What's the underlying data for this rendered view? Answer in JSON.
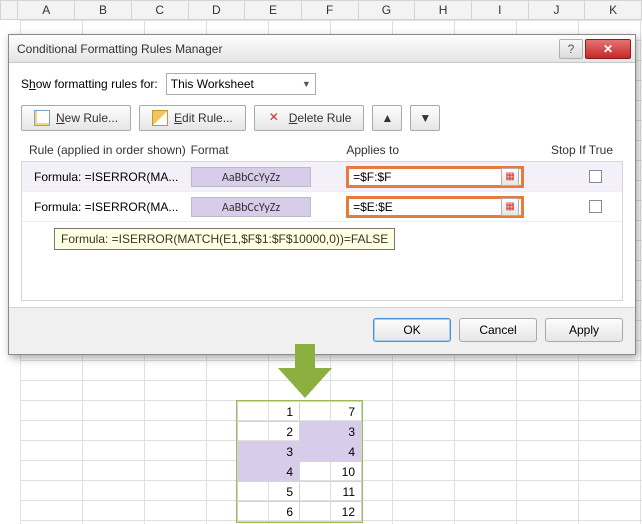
{
  "spreadsheet": {
    "columns": [
      "A",
      "B",
      "C",
      "D",
      "E",
      "F",
      "G",
      "H",
      "I",
      "J",
      "K"
    ]
  },
  "dialog": {
    "title": "Conditional Formatting Rules Manager",
    "show_label_pre": "S",
    "show_label_u": "h",
    "show_label_post": "ow formatting rules for:",
    "show_combo": "This Worksheet",
    "buttons": {
      "new_u": "N",
      "new_rest": "ew Rule...",
      "edit_u": "E",
      "edit_rest": "dit Rule...",
      "del_u": "D",
      "del_rest": "elete Rule",
      "up": "▲",
      "down": "▼"
    },
    "headers": {
      "rule": "Rule (applied in order shown)",
      "format": "Format",
      "applies": "Applies to",
      "stop": "Stop If True"
    },
    "rules": [
      {
        "text": "Formula: =ISERROR(MA...",
        "preview": "AaBbCcYyZz",
        "applies": "=$F:$F"
      },
      {
        "text": "Formula: =ISERROR(MA...",
        "preview": "AaBbCcYyZz",
        "applies": "=$E:$E"
      }
    ],
    "tooltip": "Formula: =ISERROR(MATCH(E1,$F$1:$F$10000,0))=FALSE",
    "ok": "OK",
    "cancel": "Cancel",
    "apply": "Apply"
  },
  "result": {
    "rows": [
      {
        "e": "1",
        "f": "7",
        "ehl": false,
        "fhl": false
      },
      {
        "e": "2",
        "f": "3",
        "ehl": false,
        "fhl": true
      },
      {
        "e": "3",
        "f": "4",
        "ehl": true,
        "fhl": true
      },
      {
        "e": "4",
        "f": "10",
        "ehl": true,
        "fhl": false
      },
      {
        "e": "5",
        "f": "11",
        "ehl": false,
        "fhl": false
      },
      {
        "e": "6",
        "f": "12",
        "ehl": false,
        "fhl": false
      }
    ]
  },
  "colors": {
    "highlight": "#d7ccea",
    "orange_border": "#e77b3c",
    "arrow": "#8bb040"
  }
}
